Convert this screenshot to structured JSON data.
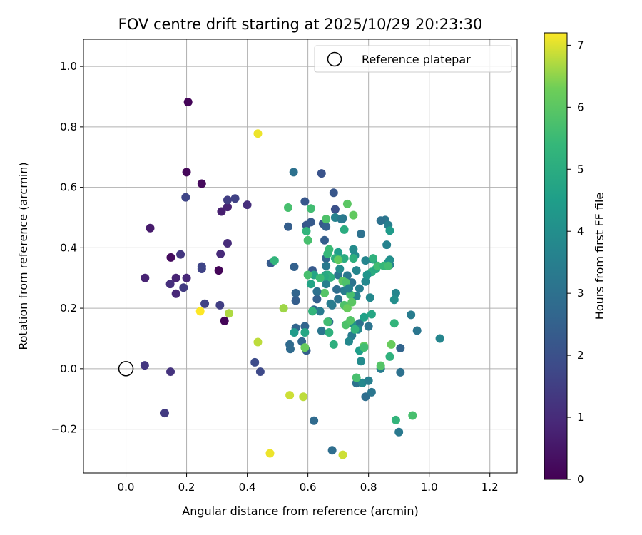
{
  "chart_data": {
    "type": "scatter",
    "title": "FOV centre drift starting at 2025/10/29 20:23:30",
    "xlabel": "Angular distance from reference (arcmin)",
    "ylabel": "Rotation from reference (arcmin)",
    "xlim": [
      -0.14,
      1.29
    ],
    "ylim": [
      -0.345,
      1.09
    ],
    "xticks": [
      0.0,
      0.2,
      0.4,
      0.6,
      0.8,
      1.0,
      1.2
    ],
    "xtick_labels": [
      "0.0",
      "0.2",
      "0.4",
      "0.6",
      "0.8",
      "1.0",
      "1.2"
    ],
    "yticks": [
      -0.2,
      0.0,
      0.2,
      0.4,
      0.6,
      0.8,
      1.0
    ],
    "ytick_labels": [
      "−0.2",
      "0.0",
      "0.2",
      "0.4",
      "0.6",
      "0.8",
      "1.0"
    ],
    "grid": true,
    "legend": {
      "position": "top-right",
      "label": "Reference platepar"
    },
    "reference_point": {
      "x": 0.0,
      "y": 0.0
    },
    "colorbar": {
      "label": "Hours from first FF file",
      "min": 0,
      "max": 7.2,
      "ticks": [
        0,
        1,
        2,
        3,
        4,
        5,
        6,
        7
      ],
      "tick_labels": [
        "0",
        "1",
        "2",
        "3",
        "4",
        "5",
        "6",
        "7"
      ],
      "colormap": "viridis"
    },
    "points": [
      [
        0.205,
        0.882,
        0.1
      ],
      [
        0.2,
        0.65,
        0.15
      ],
      [
        0.25,
        0.612,
        0.2
      ],
      [
        0.306,
        0.325,
        0.1
      ],
      [
        0.325,
        0.158,
        0.1
      ],
      [
        0.148,
        0.368,
        0.25
      ],
      [
        0.08,
        0.465,
        0.6
      ],
      [
        0.063,
        0.3,
        0.8
      ],
      [
        0.315,
        0.52,
        0.7
      ],
      [
        0.335,
        0.535,
        0.8
      ],
      [
        0.165,
        0.248,
        0.9
      ],
      [
        0.146,
        0.28,
        1.1
      ],
      [
        0.165,
        0.3,
        0.8
      ],
      [
        0.2,
        0.3,
        0.9
      ],
      [
        0.312,
        0.38,
        0.95
      ],
      [
        0.335,
        0.415,
        1.0
      ],
      [
        0.4,
        0.542,
        1.1
      ],
      [
        0.335,
        0.558,
        1.5
      ],
      [
        0.36,
        0.563,
        1.6
      ],
      [
        0.197,
        0.567,
        1.7
      ],
      [
        0.18,
        0.378,
        1.3
      ],
      [
        0.19,
        0.268,
        1.4
      ],
      [
        0.25,
        0.33,
        1.6
      ],
      [
        0.25,
        0.338,
        1.7
      ],
      [
        0.26,
        0.215,
        1.6
      ],
      [
        0.31,
        0.21,
        1.5
      ],
      [
        0.062,
        0.011,
        1.3
      ],
      [
        0.147,
        -0.01,
        1.2
      ],
      [
        0.128,
        -0.147,
        1.4
      ],
      [
        0.425,
        0.021,
        1.9
      ],
      [
        0.443,
        -0.01,
        1.8
      ],
      [
        0.478,
        0.349,
        2.3
      ],
      [
        0.553,
        0.65,
        3.0
      ],
      [
        0.645,
        0.646,
        2.1
      ],
      [
        0.535,
        0.47,
        2.4
      ],
      [
        0.555,
        0.337,
        2.5
      ],
      [
        0.56,
        0.25,
        2.6
      ],
      [
        0.56,
        0.225,
        2.4
      ],
      [
        0.59,
        0.553,
        2.2
      ],
      [
        0.595,
        0.475,
        2.2
      ],
      [
        0.61,
        0.485,
        2.3
      ],
      [
        0.65,
        0.48,
        2.2
      ],
      [
        0.66,
        0.47,
        2.5
      ],
      [
        0.685,
        0.582,
        2.2
      ],
      [
        0.69,
        0.527,
        2.0
      ],
      [
        0.655,
        0.425,
        2.4
      ],
      [
        0.66,
        0.365,
        2.6
      ],
      [
        0.615,
        0.325,
        2.3
      ],
      [
        0.63,
        0.23,
        2.5
      ],
      [
        0.62,
        0.195,
        2.7
      ],
      [
        0.56,
        0.135,
        2.6
      ],
      [
        0.59,
        0.14,
        2.6
      ],
      [
        0.58,
        0.09,
        2.7
      ],
      [
        0.595,
        0.06,
        2.4
      ],
      [
        0.54,
        0.08,
        2.8
      ],
      [
        0.542,
        0.065,
        2.8
      ],
      [
        0.62,
        -0.172,
        2.8
      ],
      [
        0.68,
        -0.27,
        2.9
      ],
      [
        0.76,
        -0.048,
        3.0
      ],
      [
        0.79,
        -0.093,
        2.9
      ],
      [
        0.81,
        -0.078,
        3.2
      ],
      [
        0.78,
        -0.047,
        3.8
      ],
      [
        0.8,
        -0.04,
        3.5
      ],
      [
        0.84,
        0.0,
        3.4
      ],
      [
        0.905,
        -0.012,
        3.0
      ],
      [
        0.9,
        -0.21,
        3.3
      ],
      [
        0.905,
        0.068,
        2.6
      ],
      [
        0.96,
        0.126,
        3.2
      ],
      [
        0.94,
        0.178,
        3.4
      ],
      [
        1.035,
        0.1,
        3.7
      ],
      [
        0.855,
        0.492,
        3.2
      ],
      [
        0.84,
        0.49,
        3.0
      ],
      [
        0.865,
        0.475,
        3.5
      ],
      [
        0.87,
        0.457,
        4.4
      ],
      [
        0.775,
        0.446,
        3.0
      ],
      [
        0.715,
        0.497,
        3.2
      ],
      [
        0.69,
        0.5,
        3.6
      ],
      [
        0.75,
        0.395,
        3.9
      ],
      [
        0.755,
        0.375,
        3.9
      ],
      [
        0.76,
        0.325,
        3.7
      ],
      [
        0.73,
        0.308,
        3.3
      ],
      [
        0.745,
        0.285,
        3.1
      ],
      [
        0.72,
        0.258,
        3.4
      ],
      [
        0.76,
        0.24,
        3.6
      ],
      [
        0.77,
        0.265,
        3.5
      ],
      [
        0.695,
        0.262,
        2.9
      ],
      [
        0.7,
        0.31,
        3.2
      ],
      [
        0.68,
        0.21,
        3.3
      ],
      [
        0.675,
        0.215,
        3.4
      ],
      [
        0.67,
        0.155,
        3.0
      ],
      [
        0.645,
        0.125,
        3.2
      ],
      [
        0.64,
        0.19,
        3.4
      ],
      [
        0.66,
        0.28,
        3.5
      ],
      [
        0.66,
        0.31,
        3.7
      ],
      [
        0.79,
        0.358,
        3.7
      ],
      [
        0.815,
        0.362,
        3.9
      ],
      [
        0.79,
        0.288,
        3.8
      ],
      [
        0.805,
        0.235,
        3.8
      ],
      [
        0.89,
        0.25,
        3.7
      ],
      [
        0.87,
        0.36,
        4.0
      ],
      [
        0.87,
        0.343,
        3.6
      ],
      [
        0.865,
        0.352,
        4.2
      ],
      [
        0.885,
        0.228,
        4.0
      ],
      [
        0.77,
        0.15,
        3.0
      ],
      [
        0.8,
        0.14,
        3.1
      ],
      [
        0.765,
        0.13,
        3.8
      ],
      [
        0.745,
        0.11,
        3.4
      ],
      [
        0.745,
        0.15,
        4.1
      ],
      [
        0.735,
        0.09,
        3.8
      ],
      [
        0.77,
        0.06,
        4.5
      ],
      [
        0.775,
        0.025,
        3.9
      ],
      [
        0.785,
        0.17,
        4.6
      ],
      [
        0.81,
        0.18,
        4.8
      ],
      [
        0.81,
        0.32,
        5.0
      ],
      [
        0.795,
        0.31,
        4.2
      ],
      [
        0.825,
        0.33,
        4.9
      ],
      [
        0.815,
        0.365,
        5.2
      ],
      [
        0.83,
        0.34,
        5.6
      ],
      [
        0.85,
        0.34,
        5.4
      ],
      [
        0.865,
        0.34,
        5.6
      ],
      [
        0.75,
        0.365,
        5.1
      ],
      [
        0.72,
        0.365,
        5.0
      ],
      [
        0.7,
        0.385,
        4.5
      ],
      [
        0.69,
        0.365,
        5.2
      ],
      [
        0.7,
        0.36,
        6.1
      ],
      [
        0.67,
        0.395,
        5.5
      ],
      [
        0.665,
        0.38,
        5.4
      ],
      [
        0.665,
        0.31,
        5.0
      ],
      [
        0.675,
        0.302,
        5.1
      ],
      [
        0.655,
        0.305,
        4.9
      ],
      [
        0.62,
        0.31,
        4.7
      ],
      [
        0.61,
        0.28,
        4.7
      ],
      [
        0.64,
        0.3,
        5.5
      ],
      [
        0.6,
        0.31,
        5.7
      ],
      [
        0.595,
        0.455,
        5.3
      ],
      [
        0.6,
        0.425,
        5.7
      ],
      [
        0.61,
        0.53,
        5.6
      ],
      [
        0.535,
        0.533,
        5.7
      ],
      [
        0.49,
        0.358,
        5.3
      ],
      [
        0.555,
        0.12,
        4.4
      ],
      [
        0.59,
        0.12,
        4.8
      ],
      [
        0.615,
        0.19,
        5.3
      ],
      [
        0.655,
        0.25,
        5.9
      ],
      [
        0.67,
        0.12,
        5.2
      ],
      [
        0.685,
        0.08,
        5.1
      ],
      [
        0.665,
        0.155,
        5.6
      ],
      [
        0.715,
        0.29,
        6.0
      ],
      [
        0.72,
        0.46,
        5.0
      ],
      [
        0.73,
        0.545,
        6.0
      ],
      [
        0.75,
        0.508,
        6.1
      ],
      [
        0.725,
        0.285,
        5.8
      ],
      [
        0.72,
        0.21,
        5.8
      ],
      [
        0.73,
        0.2,
        6.2
      ],
      [
        0.725,
        0.145,
        5.8
      ],
      [
        0.74,
        0.245,
        5.7
      ],
      [
        0.745,
        0.22,
        6.0
      ],
      [
        0.74,
        0.16,
        5.9
      ],
      [
        0.755,
        0.13,
        5.3
      ],
      [
        0.76,
        -0.03,
        5.7
      ],
      [
        0.785,
        0.075,
        6.1
      ],
      [
        0.785,
        0.07,
        5.6
      ],
      [
        0.84,
        0.01,
        5.9
      ],
      [
        0.87,
        0.04,
        5.2
      ],
      [
        0.885,
        0.15,
        5.3
      ],
      [
        0.875,
        0.08,
        6.2
      ],
      [
        0.89,
        -0.17,
        5.3
      ],
      [
        0.945,
        -0.155,
        5.7
      ],
      [
        0.59,
        0.07,
        6.2
      ],
      [
        0.52,
        0.2,
        6.6
      ],
      [
        0.435,
        0.088,
        6.8
      ],
      [
        0.34,
        0.183,
        6.7
      ],
      [
        0.245,
        0.19,
        7.2
      ],
      [
        0.435,
        0.778,
        7.1
      ],
      [
        0.54,
        -0.088,
        6.9
      ],
      [
        0.585,
        -0.093,
        6.8
      ],
      [
        0.475,
        -0.28,
        7.1
      ],
      [
        0.715,
        -0.285,
        6.9
      ],
      [
        0.71,
        0.495,
        3.3
      ],
      [
        0.66,
        0.495,
        5.8
      ],
      [
        0.63,
        0.255,
        3.0
      ],
      [
        0.7,
        0.23,
        3.1
      ],
      [
        0.735,
        0.265,
        3.5
      ],
      [
        0.86,
        0.41,
        3.6
      ],
      [
        0.66,
        0.34,
        3.3
      ],
      [
        0.705,
        0.33,
        3.9
      ]
    ]
  }
}
